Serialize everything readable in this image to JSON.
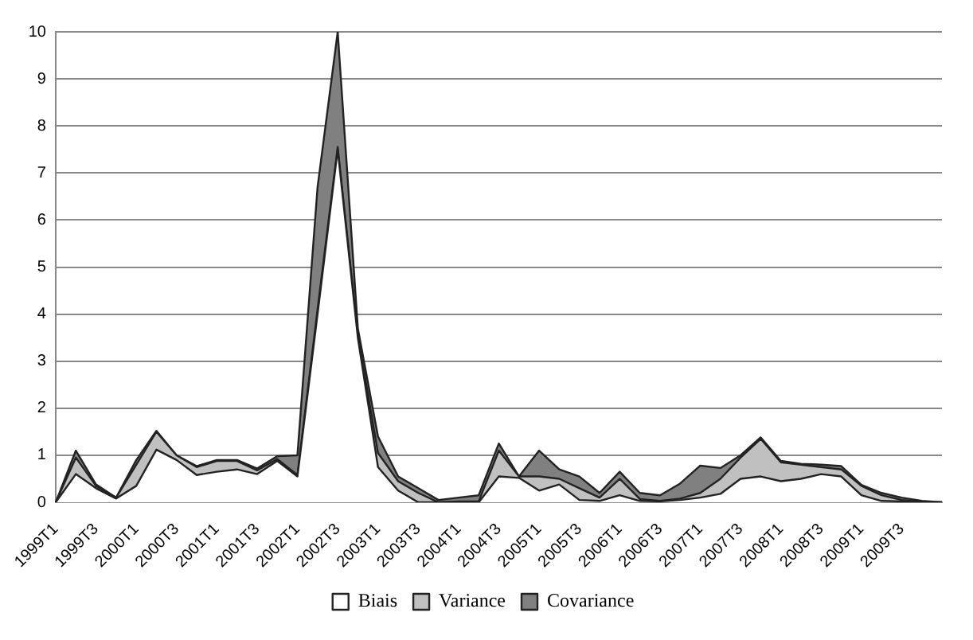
{
  "chart_data": {
    "type": "area",
    "stacked": true,
    "categories": [
      "1999T1",
      null,
      "1999T3",
      null,
      "2000T1",
      null,
      "2000T3",
      null,
      "2001T1",
      null,
      "2001T3",
      null,
      "2002T1",
      null,
      "2002T3",
      null,
      "2003T1",
      null,
      "2003T3",
      null,
      "2004T1",
      null,
      "2004T3",
      null,
      "2005T1",
      null,
      "2005T3",
      null,
      "2006T1",
      null,
      "2006T3",
      null,
      "2007T1",
      null,
      "2007T3",
      null,
      "2008T1",
      null,
      "2008T3",
      null,
      "2009T1",
      null,
      "2009T3",
      null,
      null
    ],
    "series": [
      {
        "name": "Biais",
        "color": "#ffffff",
        "values": [
          0,
          0.6,
          0.3,
          0.08,
          0.35,
          1.12,
          0.9,
          0.58,
          0.65,
          0.7,
          0.6,
          0.88,
          0.55,
          4.0,
          7.5,
          3.5,
          0.75,
          0.25,
          0,
          0,
          0,
          0,
          0.55,
          0.52,
          0.25,
          0.38,
          0.05,
          0.03,
          0.15,
          0.03,
          0.02,
          0.05,
          0.1,
          0.18,
          0.5,
          0.55,
          0.45,
          0.5,
          0.6,
          0.55,
          0.15,
          0.03,
          0.02,
          0,
          0
        ]
      },
      {
        "name": "Variance",
        "color": "#c0c0c0",
        "values": [
          0,
          0.35,
          0.05,
          0.02,
          0.45,
          0.38,
          0.1,
          0.17,
          0.23,
          0.18,
          0.08,
          0.04,
          0.03,
          0.1,
          0.05,
          0.05,
          0.3,
          0.2,
          0.2,
          0,
          0.02,
          0.02,
          0.55,
          0.03,
          0.3,
          0.12,
          0.25,
          0.07,
          0.35,
          0.04,
          0.01,
          0.03,
          0.1,
          0.32,
          0.45,
          0.8,
          0.4,
          0.3,
          0.15,
          0.15,
          0.2,
          0.12,
          0.03,
          0.01,
          0
        ]
      },
      {
        "name": "Covariance",
        "color": "#808080",
        "values": [
          0,
          0.15,
          0.03,
          0,
          0.1,
          0.02,
          0,
          0.02,
          0.02,
          0.02,
          0.04,
          0.06,
          0.42,
          2.6,
          2.45,
          0.15,
          0.35,
          0.1,
          0.1,
          0.05,
          0.08,
          0.13,
          0.15,
          0,
          0.55,
          0.2,
          0.25,
          0.1,
          0.15,
          0.13,
          0.12,
          0.32,
          0.58,
          0.23,
          0.05,
          0.03,
          0.03,
          0.02,
          0.05,
          0.07,
          0.02,
          0.05,
          0.05,
          0.02,
          0
        ]
      }
    ],
    "ylim": [
      0,
      10
    ],
    "yticks": [
      0,
      1,
      2,
      3,
      4,
      5,
      6,
      7,
      8,
      9,
      10
    ],
    "grid": "y",
    "legend": "bottom"
  }
}
